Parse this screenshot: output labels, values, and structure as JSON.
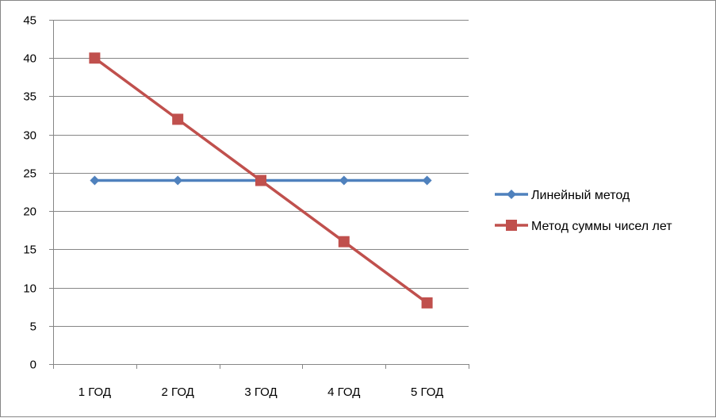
{
  "chart_data": {
    "type": "line",
    "categories": [
      "1 ГОД",
      "2 ГОД",
      "3 ГОД",
      "4 ГОД",
      "5 ГОД"
    ],
    "ylim": [
      0,
      45
    ],
    "yticks": [
      0,
      5,
      10,
      15,
      20,
      25,
      30,
      35,
      40,
      45
    ],
    "grid": true,
    "legend_position": "right",
    "series": [
      {
        "name": "Линейный метод",
        "values": [
          24,
          24,
          24,
          24,
          24
        ],
        "color": "#4F81BD",
        "marker": "diamond"
      },
      {
        "name": "Метод суммы чисел лет",
        "values": [
          40,
          32,
          24,
          16,
          8
        ],
        "color": "#C0504D",
        "marker": "square"
      }
    ]
  }
}
